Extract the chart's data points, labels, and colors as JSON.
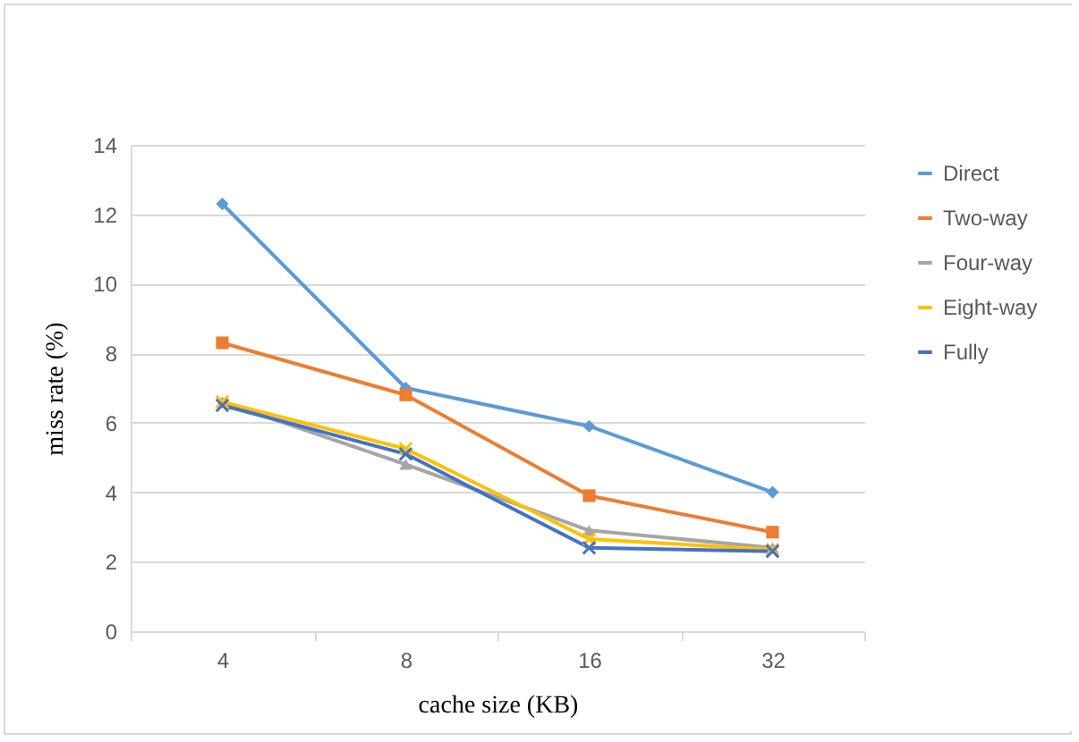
{
  "chart_data": {
    "type": "line",
    "xlabel": "cache size (KB)",
    "ylabel": "miss rate (%)",
    "categories": [
      "4",
      "8",
      "16",
      "32"
    ],
    "series": [
      {
        "name": "Direct",
        "color": "#5b9bd5",
        "marker": "diamond",
        "values": [
          12.3,
          7.0,
          5.9,
          4.0
        ]
      },
      {
        "name": "Two-way",
        "color": "#ed7d31",
        "marker": "square",
        "values": [
          8.3,
          6.8,
          3.9,
          2.85
        ]
      },
      {
        "name": "Four-way",
        "color": "#a5a5a5",
        "marker": "triangle",
        "values": [
          6.6,
          4.8,
          2.9,
          2.4
        ]
      },
      {
        "name": "Eight-way",
        "color": "#ffc000",
        "marker": "cross",
        "values": [
          6.6,
          5.25,
          2.65,
          2.35
        ]
      },
      {
        "name": "Fully",
        "color": "#4472c4",
        "marker": "cross",
        "values": [
          6.5,
          5.1,
          2.4,
          2.3
        ]
      }
    ],
    "ylim": [
      0,
      14
    ],
    "yticks": [
      0,
      2,
      4,
      6,
      8,
      10,
      12,
      14
    ],
    "grid": "y",
    "legend": "right",
    "line_style": "solid"
  }
}
